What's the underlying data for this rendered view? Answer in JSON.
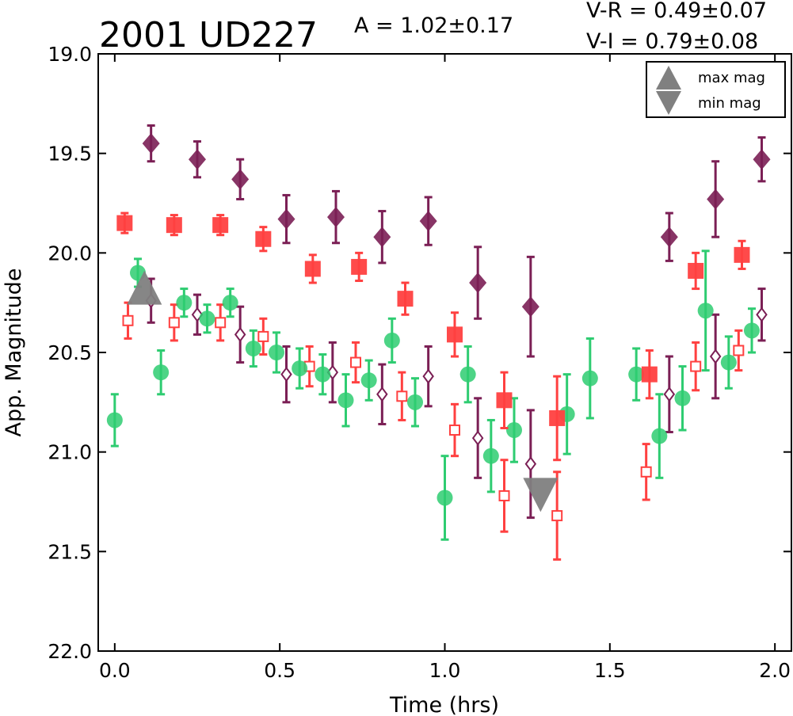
{
  "header": {
    "object_name": "2001 UD227",
    "amplitude": "A  = 1.02±0.17",
    "v_r": "V-R = 0.49±0.07",
    "v_i": "V-I  = 0.79±0.08"
  },
  "chart_data": {
    "type": "scatter",
    "title": "2001 UD227",
    "xlabel": "Time (hrs)",
    "ylabel": "App. Magnitude",
    "xlim": [
      -0.05,
      2.05
    ],
    "ylim": [
      22.0,
      19.0
    ],
    "y_inverted": true,
    "grid": false,
    "x_ticks": [
      0.0,
      0.5,
      1.0,
      1.5,
      2.0
    ],
    "x_tick_labels": [
      "0.0",
      "0.5",
      "1.0",
      "1.5",
      "2.0"
    ],
    "y_ticks": [
      19.0,
      19.5,
      20.0,
      20.5,
      21.0,
      21.5,
      22.0
    ],
    "y_tick_labels": [
      "19.0",
      "19.5",
      "20.0",
      "20.5",
      "21.0",
      "21.5",
      "22.0"
    ],
    "legend": {
      "placement": "top-right",
      "entries": [
        {
          "label": "max mag",
          "marker": "triangle-up",
          "color": "#808080"
        },
        {
          "label": "min mag",
          "marker": "triangle-down",
          "color": "#808080"
        }
      ]
    },
    "series": [
      {
        "marker": "circle-filled",
        "color": "#2ecc71",
        "points": [
          {
            "x": 0.0,
            "y": 20.84,
            "err": 0.13
          },
          {
            "x": 0.07,
            "y": 20.1,
            "err": 0.07
          },
          {
            "x": 0.14,
            "y": 20.6,
            "err": 0.11
          },
          {
            "x": 0.21,
            "y": 20.25,
            "err": 0.07
          },
          {
            "x": 0.28,
            "y": 20.33,
            "err": 0.07
          },
          {
            "x": 0.35,
            "y": 20.25,
            "err": 0.07
          },
          {
            "x": 0.42,
            "y": 20.48,
            "err": 0.09
          },
          {
            "x": 0.49,
            "y": 20.5,
            "err": 0.1
          },
          {
            "x": 0.56,
            "y": 20.58,
            "err": 0.1
          },
          {
            "x": 0.63,
            "y": 20.61,
            "err": 0.1
          },
          {
            "x": 0.7,
            "y": 20.74,
            "err": 0.13
          },
          {
            "x": 0.77,
            "y": 20.64,
            "err": 0.1
          },
          {
            "x": 0.84,
            "y": 20.44,
            "err": 0.11
          },
          {
            "x": 0.91,
            "y": 20.75,
            "err": 0.12
          },
          {
            "x": 1.0,
            "y": 21.23,
            "err": 0.21
          },
          {
            "x": 1.07,
            "y": 20.61,
            "err": 0.14
          },
          {
            "x": 1.14,
            "y": 21.02,
            "err": 0.18
          },
          {
            "x": 1.21,
            "y": 20.89,
            "err": 0.16
          },
          {
            "x": 1.37,
            "y": 20.81,
            "err": 0.2
          },
          {
            "x": 1.44,
            "y": 20.63,
            "err": 0.2
          },
          {
            "x": 1.58,
            "y": 20.61,
            "err": 0.13
          },
          {
            "x": 1.65,
            "y": 20.92,
            "err": 0.21
          },
          {
            "x": 1.72,
            "y": 20.73,
            "err": 0.16
          },
          {
            "x": 1.79,
            "y": 20.29,
            "err": 0.3
          },
          {
            "x": 1.86,
            "y": 20.55,
            "err": 0.13
          },
          {
            "x": 1.93,
            "y": 20.39,
            "err": 0.11
          }
        ]
      },
      {
        "marker": "square-filled",
        "color": "#ff4040",
        "points": [
          {
            "x": 0.03,
            "y": 19.85,
            "err": 0.05
          },
          {
            "x": 0.18,
            "y": 19.86,
            "err": 0.05
          },
          {
            "x": 0.32,
            "y": 19.86,
            "err": 0.05
          },
          {
            "x": 0.45,
            "y": 19.93,
            "err": 0.06
          },
          {
            "x": 0.6,
            "y": 20.08,
            "err": 0.07
          },
          {
            "x": 0.74,
            "y": 20.07,
            "err": 0.07
          },
          {
            "x": 0.88,
            "y": 20.23,
            "err": 0.08
          },
          {
            "x": 1.03,
            "y": 20.41,
            "err": 0.11
          },
          {
            "x": 1.18,
            "y": 20.74,
            "err": 0.14
          },
          {
            "x": 1.34,
            "y": 20.83,
            "err": 0.21
          },
          {
            "x": 1.62,
            "y": 20.61,
            "err": 0.12
          },
          {
            "x": 1.76,
            "y": 20.09,
            "err": 0.09
          },
          {
            "x": 1.9,
            "y": 20.01,
            "err": 0.07
          }
        ]
      },
      {
        "marker": "diamond-filled",
        "color": "#7b1f55",
        "points": [
          {
            "x": 0.11,
            "y": 19.45,
            "err": 0.09
          },
          {
            "x": 0.25,
            "y": 19.53,
            "err": 0.09
          },
          {
            "x": 0.38,
            "y": 19.63,
            "err": 0.1
          },
          {
            "x": 0.52,
            "y": 19.83,
            "err": 0.12
          },
          {
            "x": 0.67,
            "y": 19.82,
            "err": 0.13
          },
          {
            "x": 0.81,
            "y": 19.92,
            "err": 0.13
          },
          {
            "x": 0.95,
            "y": 19.84,
            "err": 0.12
          },
          {
            "x": 1.1,
            "y": 20.15,
            "err": 0.18
          },
          {
            "x": 1.26,
            "y": 20.27,
            "err": 0.25
          },
          {
            "x": 1.68,
            "y": 19.92,
            "err": 0.12
          },
          {
            "x": 1.82,
            "y": 19.73,
            "err": 0.19
          },
          {
            "x": 1.96,
            "y": 19.53,
            "err": 0.11
          }
        ]
      },
      {
        "marker": "square-open",
        "color": "#ff4040",
        "points": [
          {
            "x": 0.04,
            "y": 20.34,
            "err": 0.09
          },
          {
            "x": 0.18,
            "y": 20.35,
            "err": 0.09
          },
          {
            "x": 0.32,
            "y": 20.35,
            "err": 0.09
          },
          {
            "x": 0.45,
            "y": 20.42,
            "err": 0.09
          },
          {
            "x": 0.59,
            "y": 20.57,
            "err": 0.1
          },
          {
            "x": 0.73,
            "y": 20.55,
            "err": 0.1
          },
          {
            "x": 0.87,
            "y": 20.72,
            "err": 0.12
          },
          {
            "x": 1.03,
            "y": 20.89,
            "err": 0.13
          },
          {
            "x": 1.18,
            "y": 21.22,
            "err": 0.18
          },
          {
            "x": 1.34,
            "y": 21.32,
            "err": 0.22
          },
          {
            "x": 1.61,
            "y": 21.1,
            "err": 0.14
          },
          {
            "x": 1.76,
            "y": 20.57,
            "err": 0.12
          },
          {
            "x": 1.89,
            "y": 20.49,
            "err": 0.1
          }
        ]
      },
      {
        "marker": "diamond-open",
        "color": "#7b1f55",
        "points": [
          {
            "x": 0.11,
            "y": 20.24,
            "err": 0.11
          },
          {
            "x": 0.25,
            "y": 20.31,
            "err": 0.1
          },
          {
            "x": 0.38,
            "y": 20.41,
            "err": 0.14
          },
          {
            "x": 0.52,
            "y": 20.61,
            "err": 0.14
          },
          {
            "x": 0.66,
            "y": 20.6,
            "err": 0.15
          },
          {
            "x": 0.81,
            "y": 20.71,
            "err": 0.15
          },
          {
            "x": 0.95,
            "y": 20.62,
            "err": 0.15
          },
          {
            "x": 1.1,
            "y": 20.93,
            "err": 0.2
          },
          {
            "x": 1.26,
            "y": 21.06,
            "err": 0.27
          },
          {
            "x": 1.68,
            "y": 20.71,
            "err": 0.19
          },
          {
            "x": 1.82,
            "y": 20.52,
            "err": 0.21
          },
          {
            "x": 1.96,
            "y": 20.31,
            "err": 0.13
          }
        ]
      }
    ],
    "extrema": [
      {
        "label": "max mag",
        "marker": "triangle-up",
        "color": "#808080",
        "x": 0.09,
        "y": 20.2
      },
      {
        "label": "min mag",
        "marker": "triangle-down",
        "color": "#808080",
        "x": 1.29,
        "y": 21.19
      }
    ]
  }
}
